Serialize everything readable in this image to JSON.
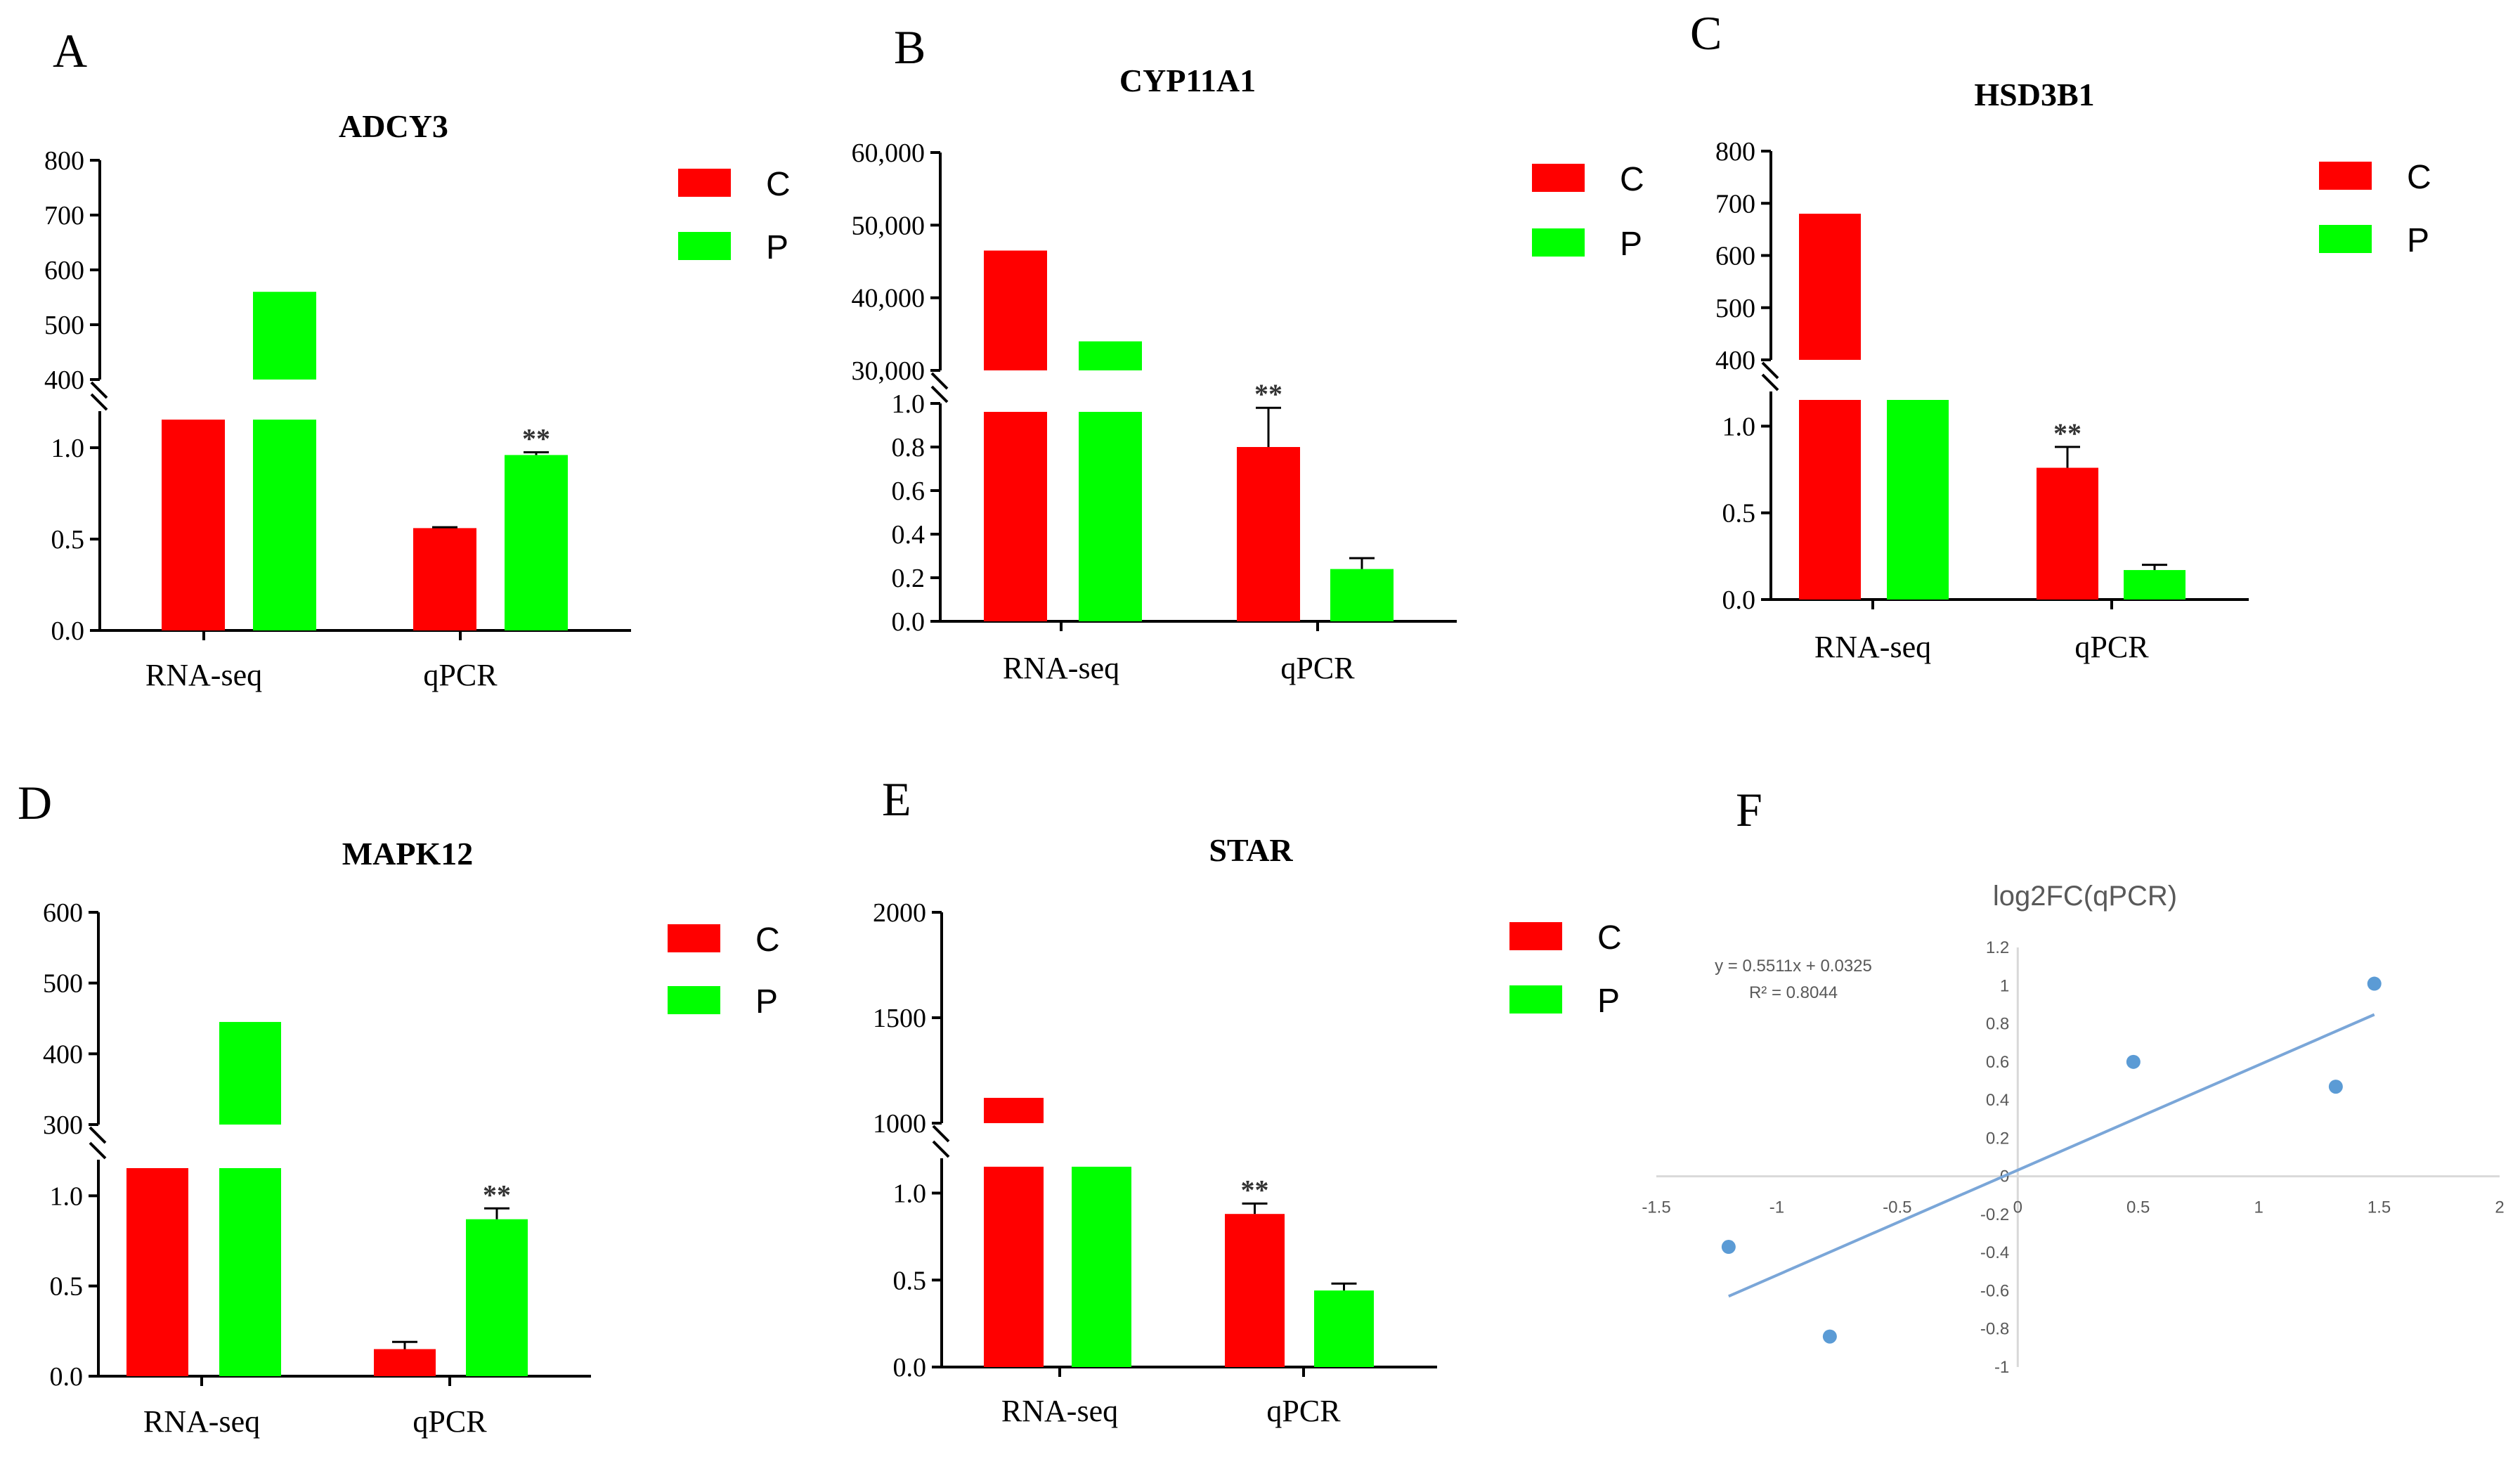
{
  "colors": {
    "C": "#ff0000",
    "P": "#00ff00",
    "scatter": "#5b9bd5",
    "trend": "#7aa6d8",
    "axisF": "#d9d9d9"
  },
  "chart_data": [
    {
      "type": "bar",
      "letter": "A",
      "title": "ADCY3",
      "categories": [
        "RNA-seq",
        "qPCR"
      ],
      "legend": [
        "C",
        "P"
      ],
      "upper": {
        "ylim": [
          400,
          800
        ],
        "ticks": [
          "400",
          "500",
          "600",
          "700",
          "800"
        ]
      },
      "lower": {
        "ylim": [
          0,
          1.2
        ],
        "ticks": [
          "0.0",
          "0.5",
          "1.0"
        ],
        "tickValues": [
          0,
          0.5,
          1.0
        ]
      },
      "series": [
        {
          "name": "C",
          "values": [
            190,
            0.56
          ],
          "errors": [
            null,
            0.005
          ]
        },
        {
          "name": "P",
          "values": [
            560,
            0.96
          ],
          "errors": [
            null,
            0.015
          ]
        }
      ],
      "significance": {
        "series": "P",
        "category": "qPCR",
        "label": "**"
      }
    },
    {
      "type": "bar",
      "letter": "B",
      "title": "CYP11A1",
      "categories": [
        "RNA-seq",
        "qPCR"
      ],
      "legend": [
        "C",
        "P"
      ],
      "upper": {
        "ylim": [
          30000,
          60000
        ],
        "ticks": [
          "30,000",
          "40,000",
          "50,000",
          "60,000"
        ]
      },
      "lower": {
        "ylim": [
          0,
          1.0
        ],
        "ticks": [
          "0.0",
          "0.2",
          "0.4",
          "0.6",
          "0.8",
          "1.0"
        ],
        "tickValues": [
          0,
          0.2,
          0.4,
          0.6,
          0.8,
          1.0
        ]
      },
      "series": [
        {
          "name": "C",
          "values": [
            46500,
            0.8
          ],
          "errors": [
            null,
            0.18
          ]
        },
        {
          "name": "P",
          "values": [
            34000,
            0.24
          ],
          "errors": [
            null,
            0.05
          ]
        }
      ],
      "significance": {
        "series": "C",
        "category": "qPCR",
        "label": "**"
      }
    },
    {
      "type": "bar",
      "letter": "C",
      "title": "HSD3B1",
      "categories": [
        "RNA-seq",
        "qPCR"
      ],
      "legend": [
        "C",
        "P"
      ],
      "upper": {
        "ylim": [
          400,
          800
        ],
        "ticks": [
          "400",
          "500",
          "600",
          "700",
          "800"
        ]
      },
      "lower": {
        "ylim": [
          0,
          1.2
        ],
        "ticks": [
          "0.0",
          "0.5",
          "1.0"
        ],
        "tickValues": [
          0,
          0.5,
          1.0
        ]
      },
      "series": [
        {
          "name": "C",
          "values": [
            680,
            0.76
          ],
          "errors": [
            null,
            0.12
          ]
        },
        {
          "name": "P",
          "values": [
            170,
            0.17
          ],
          "errors": [
            null,
            0.03
          ]
        }
      ],
      "significance": {
        "series": "C",
        "category": "qPCR",
        "label": "**"
      }
    },
    {
      "type": "bar",
      "letter": "D",
      "title": "MAPK12",
      "categories": [
        "RNA-seq",
        "qPCR"
      ],
      "legend": [
        "C",
        "P"
      ],
      "upper": {
        "ylim": [
          300,
          600
        ],
        "ticks": [
          "300",
          "400",
          "500",
          "600"
        ]
      },
      "lower": {
        "ylim": [
          0,
          1.2
        ],
        "ticks": [
          "0.0",
          "0.5",
          "1.0"
        ],
        "tickValues": [
          0,
          0.5,
          1.0
        ]
      },
      "series": [
        {
          "name": "C",
          "values": [
            120,
            0.15
          ],
          "errors": [
            null,
            0.04
          ]
        },
        {
          "name": "P",
          "values": [
            445,
            0.87
          ],
          "errors": [
            null,
            0.06
          ]
        }
      ],
      "significance": {
        "series": "P",
        "category": "qPCR",
        "label": "**"
      }
    },
    {
      "type": "bar",
      "letter": "E",
      "title": "STAR",
      "categories": [
        "RNA-seq",
        "qPCR"
      ],
      "legend": [
        "C",
        "P"
      ],
      "upper": {
        "ylim": [
          1000,
          2000
        ],
        "ticks": [
          "1000",
          "1500",
          "2000"
        ]
      },
      "lower": {
        "ylim": [
          0,
          1.2
        ],
        "ticks": [
          "0.0",
          "0.5",
          "1.0"
        ],
        "tickValues": [
          0,
          0.5,
          1.0
        ]
      },
      "series": [
        {
          "name": "C",
          "values": [
            1120,
            0.88
          ],
          "errors": [
            null,
            0.06
          ]
        },
        {
          "name": "P",
          "values": [
            500,
            0.44
          ],
          "errors": [
            null,
            0.04
          ]
        }
      ],
      "significance": {
        "series": "C",
        "category": "qPCR",
        "label": "**"
      }
    },
    {
      "type": "scatter",
      "letter": "F",
      "title": "log2FC(qPCR)",
      "equation": "y = 0.5511x + 0.0325",
      "r2": "R² = 0.8044",
      "xlim": [
        -1.5,
        2
      ],
      "ylim": [
        -1,
        1.2
      ],
      "xticks": [
        "-1.5",
        "-1",
        "-0.5",
        "0",
        "0.5",
        "1",
        "1.5",
        "2"
      ],
      "xtickValues": [
        -1.5,
        -1,
        -0.5,
        0,
        0.5,
        1,
        1.5,
        2
      ],
      "yticks": [
        "-1",
        "-0.8",
        "-0.6",
        "-0.4",
        "-0.2",
        "0",
        "0.2",
        "0.4",
        "0.6",
        "0.8",
        "1",
        "1.2"
      ],
      "ytickValues": [
        -1,
        -0.8,
        -0.6,
        -0.4,
        -0.2,
        0,
        0.2,
        0.4,
        0.6,
        0.8,
        1,
        1.2
      ],
      "points": [
        {
          "x": -1.2,
          "y": -0.37
        },
        {
          "x": -0.78,
          "y": -0.84
        },
        {
          "x": 0.48,
          "y": 0.6
        },
        {
          "x": 1.32,
          "y": 0.47
        },
        {
          "x": 1.48,
          "y": 1.01
        }
      ],
      "trendline": {
        "slope": 0.5511,
        "intercept": 0.0325,
        "xrange": [
          -1.2,
          1.48
        ]
      }
    }
  ]
}
